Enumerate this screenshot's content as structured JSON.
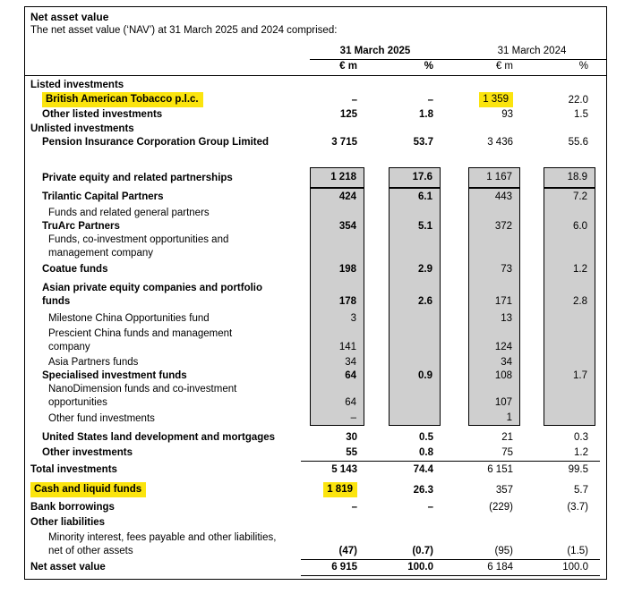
{
  "title": "Net asset value",
  "subtitle": "The net asset value (‘NAV’) at 31 March 2025 and 2024 comprised:",
  "header": {
    "year_2025": "31 March 2025",
    "year_2024": "31 March 2024",
    "unit_eur": "€ m",
    "unit_pct": "%"
  },
  "colors": {
    "highlight": "#fbe40e",
    "shade": "#cfcfcf",
    "line": "#000000"
  },
  "rows": [
    {
      "label": "Listed investments",
      "indent": 0,
      "bold": true,
      "values": [
        "",
        "",
        "",
        ""
      ],
      "shade": "none",
      "gap": 3
    },
    {
      "label": "British American Tobacco p.l.c.",
      "indent": 1,
      "bold": true,
      "values": [
        "–",
        "–",
        "1 359",
        "22.0"
      ],
      "shade": "none",
      "gap": 0,
      "hl_label": true,
      "hl_cell": 2
    },
    {
      "label": "Other listed investments",
      "indent": 1,
      "bold": true,
      "values": [
        "125",
        "1.8",
        "93",
        "1.5"
      ],
      "shade": "none",
      "gap": 1
    },
    {
      "label": "Unlisted investments",
      "indent": 0,
      "bold": true,
      "values": [
        "",
        "",
        "",
        ""
      ],
      "shade": "none",
      "gap": 1
    },
    {
      "label": "Pension Insurance Corporation Group Limited",
      "indent": 1,
      "bold": true,
      "values": [
        "3 715",
        "53.7",
        "3 436",
        "55.6"
      ],
      "shade": "none",
      "gap": 0
    },
    {
      "label": "Private equity and related partnerships",
      "indent": 1,
      "bold": true,
      "values": [
        "1 218",
        "17.6",
        "1 167",
        "18.9"
      ],
      "shade": "box",
      "gap": 20
    },
    {
      "label": "Trilantic Capital Partners",
      "indent": 1,
      "bold": true,
      "values": [
        "424",
        "6.1",
        "443",
        "7.2"
      ],
      "shade": "col-first",
      "gap": 2
    },
    {
      "label": "Funds and related general partners",
      "indent": 2,
      "bold": false,
      "values": [
        "",
        "",
        "",
        ""
      ],
      "shade": "col",
      "gap": 3
    },
    {
      "label": "TruArc Partners",
      "indent": 1,
      "bold": true,
      "values": [
        "354",
        "5.1",
        "372",
        "6.0"
      ],
      "shade": "col",
      "gap": 0
    },
    {
      "label": "Funds, co-investment opportunities and\nmanagement company",
      "indent": 2,
      "bold": false,
      "values": [
        "",
        "",
        "",
        ""
      ],
      "shade": "col",
      "gap": 0
    },
    {
      "label": "Coatue funds",
      "indent": 1,
      "bold": true,
      "values": [
        "198",
        "2.9",
        "73",
        "1.2"
      ],
      "shade": "col",
      "gap": 3
    },
    {
      "label": "Asian private equity companies and portfolio\nfunds",
      "indent": 1,
      "bold": true,
      "values": [
        "178",
        "2.6",
        "171",
        "2.8"
      ],
      "shade": "col",
      "gap": 6
    },
    {
      "label": "Milestone China Opportunities fund",
      "indent": 2,
      "bold": false,
      "values": [
        "3",
        "",
        "13",
        ""
      ],
      "shade": "col",
      "gap": 4
    },
    {
      "label": "Prescient China funds and management\ncompany",
      "indent": 2,
      "bold": false,
      "values": [
        "141",
        "",
        "124",
        ""
      ],
      "shade": "col",
      "gap": 2
    },
    {
      "label": "Asia Partners funds",
      "indent": 2,
      "bold": false,
      "values": [
        "34",
        "",
        "34",
        ""
      ],
      "shade": "col",
      "gap": 2
    },
    {
      "label": "Specialised investment funds",
      "indent": 1,
      "bold": true,
      "values": [
        "64",
        "0.9",
        "108",
        "1.7"
      ],
      "shade": "col",
      "gap": 0
    },
    {
      "label": "NanoDimension funds and co-investment\nopportunities",
      "indent": 2,
      "bold": false,
      "values": [
        "64",
        "",
        "107",
        ""
      ],
      "shade": "col",
      "gap": 0
    },
    {
      "label": "Other fund investments",
      "indent": 2,
      "bold": false,
      "values": [
        "–",
        "",
        "1",
        ""
      ],
      "shade": "col-last",
      "gap": 2
    },
    {
      "label": "United States land development and mortgages",
      "indent": 1,
      "bold": true,
      "values": [
        "30",
        "0.5",
        "21",
        "0.3"
      ],
      "shade": "none",
      "gap": 6
    },
    {
      "label": "Other investments",
      "indent": 1,
      "bold": true,
      "values": [
        "55",
        "0.8",
        "75",
        "1.2"
      ],
      "shade": "none",
      "gap": 2
    },
    {
      "type": "rule"
    },
    {
      "label": "Total investments",
      "indent": 0,
      "bold": true,
      "values": [
        "5 143",
        "74.4",
        "6 151",
        "99.5"
      ],
      "shade": "none",
      "gap": 2
    },
    {
      "label": "Cash and liquid funds",
      "indent": 0,
      "bold": true,
      "values": [
        "1 819",
        "26.3",
        "357",
        "5.7"
      ],
      "shade": "none",
      "gap": 6,
      "hl_label": true,
      "hl_cell": 0
    },
    {
      "label": "Bank borrowings",
      "indent": 0,
      "bold": true,
      "values": [
        "–",
        "–",
        "(229)",
        "(3.7)"
      ],
      "shade": "none",
      "gap": 4
    },
    {
      "label": "Other liabilities",
      "indent": 0,
      "bold": true,
      "values": [
        "",
        "",
        "",
        ""
      ],
      "shade": "none",
      "gap": 2
    },
    {
      "label": "Minority interest, fees payable and other liabilities,\nnet of other assets",
      "indent": 2,
      "bold": false,
      "vb": true,
      "values": [
        "(47)",
        "(0.7)",
        "(95)",
        "(1.5)"
      ],
      "shade": "none",
      "gap": 2
    },
    {
      "type": "rule"
    },
    {
      "label": "Net asset value",
      "indent": 0,
      "bold": true,
      "values": [
        "6 915",
        "100.0",
        "6 184",
        "100.0"
      ],
      "shade": "none",
      "gap": 1
    },
    {
      "type": "rule"
    }
  ]
}
